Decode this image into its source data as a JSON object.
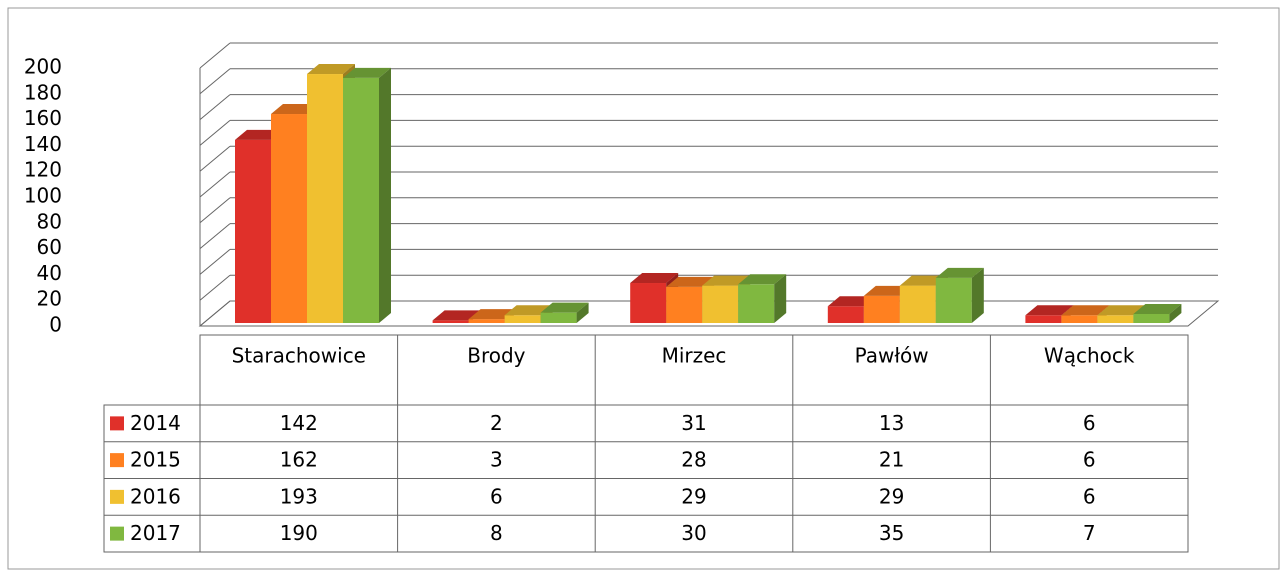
{
  "chart_data": {
    "type": "bar3d",
    "categories": [
      "Starachowice",
      "Brody",
      "Mirzec",
      "Pawłów",
      "Wąchock"
    ],
    "series": [
      {
        "name": "2014",
        "color": "#e0302a",
        "values": [
          142,
          2,
          31,
          13,
          6
        ]
      },
      {
        "name": "2015",
        "color": "#ff8020",
        "values": [
          162,
          3,
          28,
          21,
          6
        ]
      },
      {
        "name": "2016",
        "color": "#f0c030",
        "values": [
          193,
          6,
          29,
          29,
          6
        ]
      },
      {
        "name": "2017",
        "color": "#80b840",
        "values": [
          190,
          8,
          30,
          35,
          7
        ]
      }
    ],
    "ylim": [
      0,
      200
    ],
    "yticks": [
      0,
      20,
      40,
      60,
      80,
      100,
      120,
      140,
      160,
      180,
      200
    ],
    "grid": true,
    "legend": "table"
  }
}
